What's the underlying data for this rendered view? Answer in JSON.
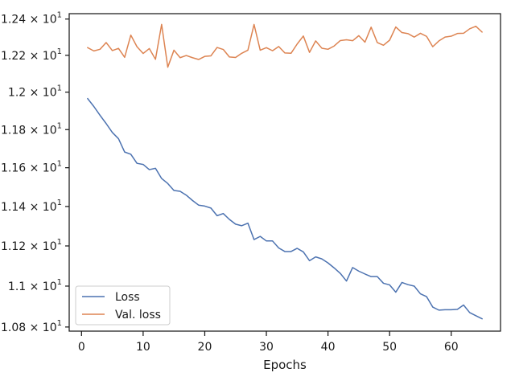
{
  "chart_data": {
    "type": "line",
    "title": "",
    "xlabel": "Epochs",
    "ylabel": "",
    "xlim": [
      -2,
      68
    ],
    "ylim": [
      10.78,
      12.43
    ],
    "yscale": "log",
    "x_ticks": [
      0,
      10,
      20,
      30,
      40,
      50,
      60
    ],
    "y_ticks": [
      {
        "value": 10.8,
        "label": "1.08 × 10^1"
      },
      {
        "value": 11.0,
        "label": "1.1 × 10^1"
      },
      {
        "value": 11.2,
        "label": "1.12 × 10^1"
      },
      {
        "value": 11.4,
        "label": "1.14 × 10^1"
      },
      {
        "value": 11.6,
        "label": "1.16 × 10^1"
      },
      {
        "value": 11.8,
        "label": "1.18 × 10^1"
      },
      {
        "value": 12.0,
        "label": "1.2 × 10^1"
      },
      {
        "value": 12.2,
        "label": "1.22 × 10^1"
      },
      {
        "value": 12.4,
        "label": "1.24 × 10^1"
      }
    ],
    "grid": false,
    "legend_position": "lower-left",
    "x": [
      1,
      2,
      3,
      4,
      5,
      6,
      7,
      8,
      9,
      10,
      11,
      12,
      13,
      14,
      15,
      16,
      17,
      18,
      19,
      20,
      21,
      22,
      23,
      24,
      25,
      26,
      27,
      28,
      29,
      30,
      31,
      32,
      33,
      34,
      35,
      36,
      37,
      38,
      39,
      40,
      41,
      42,
      43,
      44,
      45,
      46,
      47,
      48,
      49,
      50,
      51,
      52,
      53,
      54,
      55,
      56,
      57,
      58,
      59,
      60,
      61,
      62,
      63,
      64,
      65
    ],
    "series": [
      {
        "name": "Loss",
        "color": "#4c72b0",
        "values": [
          11.965,
          11.923,
          11.876,
          11.832,
          11.785,
          11.752,
          11.682,
          11.67,
          11.623,
          11.617,
          11.59,
          11.597,
          11.544,
          11.518,
          11.482,
          11.478,
          11.458,
          11.431,
          11.407,
          11.402,
          11.392,
          11.353,
          11.364,
          11.334,
          11.31,
          11.302,
          11.315,
          11.232,
          11.248,
          11.225,
          11.225,
          11.19,
          11.172,
          11.172,
          11.188,
          11.17,
          11.126,
          11.145,
          11.135,
          11.115,
          11.09,
          11.063,
          11.025,
          11.092,
          11.074,
          11.06,
          11.047,
          11.047,
          11.014,
          11.006,
          10.97,
          11.018,
          11.007,
          11.0,
          10.962,
          10.948,
          10.897,
          10.882,
          10.884,
          10.884,
          10.886,
          10.907,
          10.87,
          10.855,
          10.84
        ]
      },
      {
        "name": "Val. loss",
        "color": "#dd8452",
        "values": [
          12.242,
          12.224,
          12.233,
          12.27,
          12.226,
          12.238,
          12.189,
          12.311,
          12.247,
          12.21,
          12.237,
          12.178,
          12.37,
          12.135,
          12.228,
          12.187,
          12.199,
          12.187,
          12.177,
          12.194,
          12.197,
          12.243,
          12.232,
          12.191,
          12.188,
          12.211,
          12.228,
          12.37,
          12.228,
          12.242,
          12.225,
          12.248,
          12.213,
          12.211,
          12.262,
          12.306,
          12.216,
          12.279,
          12.239,
          12.233,
          12.251,
          12.281,
          12.285,
          12.28,
          12.308,
          12.272,
          12.355,
          12.27,
          12.255,
          12.283,
          12.356,
          12.325,
          12.319,
          12.3,
          12.321,
          12.304,
          12.247,
          12.279,
          12.3,
          12.305,
          12.32,
          12.321,
          12.346,
          12.36,
          12.328
        ]
      }
    ]
  }
}
